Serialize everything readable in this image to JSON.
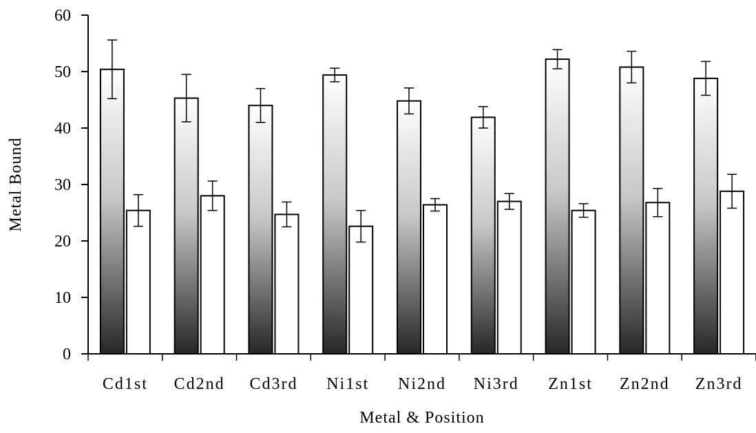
{
  "chart_data": {
    "type": "bar",
    "title": "",
    "xlabel": "Metal & Position",
    "ylabel": "Metal Bound",
    "ylim": [
      0,
      60
    ],
    "yticks": [
      "0",
      "10",
      "20",
      "30",
      "40",
      "50",
      "60"
    ],
    "categories": [
      "Cd1st",
      "Cd2nd",
      "Cd3rd",
      "Ni1st",
      "Ni2nd",
      "Ni3rd",
      "Zn1st",
      "Zn2nd",
      "Zn3rd"
    ],
    "series": [
      {
        "fill": "gradient-dark-bottom",
        "values": [
          50.4,
          45.3,
          44.0,
          49.4,
          44.8,
          41.9,
          52.2,
          50.8,
          48.8
        ],
        "errors": [
          5.2,
          4.2,
          3.0,
          1.2,
          2.3,
          1.9,
          1.7,
          2.8,
          3.0
        ]
      },
      {
        "fill": "#ffffff",
        "values": [
          25.4,
          28.0,
          24.7,
          22.6,
          26.4,
          27.0,
          25.4,
          26.8,
          28.8
        ],
        "errors": [
          2.8,
          2.6,
          2.2,
          2.8,
          1.1,
          1.4,
          1.2,
          2.5,
          3.0
        ]
      }
    ],
    "grid": false,
    "legend": "none"
  }
}
